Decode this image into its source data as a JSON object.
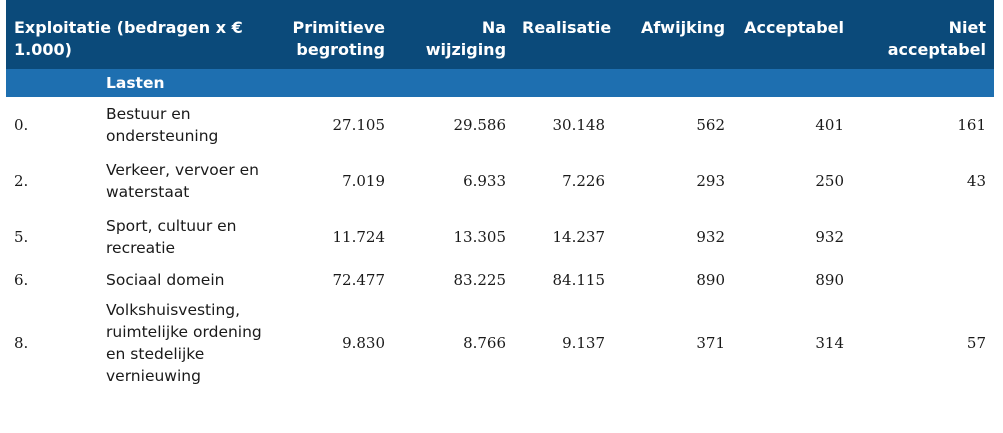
{
  "header": {
    "col_label": "Exploitatie (bedragen x € 1.000)",
    "col_primitieve": "Primitieve begroting",
    "col_na_wijziging": "Na wijziging",
    "col_realisatie": "Realisatie",
    "col_afwijking": "Afwijking",
    "col_acceptabel": "Acceptabel",
    "col_niet_acceptabel": "Niet acceptabel"
  },
  "section": {
    "label": "Lasten"
  },
  "rows": [
    {
      "code": "0.",
      "name": "Bestuur en ondersteuning",
      "primitieve": "27.105",
      "na_wijziging": "29.586",
      "realisatie": "30.148",
      "afwijking": "562",
      "acceptabel": "401",
      "niet_acceptabel": "161"
    },
    {
      "code": "2.",
      "name": "Verkeer, vervoer en waterstaat",
      "primitieve": "7.019",
      "na_wijziging": "6.933",
      "realisatie": "7.226",
      "afwijking": "293",
      "acceptabel": "250",
      "niet_acceptabel": "43"
    },
    {
      "code": "5.",
      "name": "Sport, cultuur en recreatie",
      "primitieve": "11.724",
      "na_wijziging": "13.305",
      "realisatie": "14.237",
      "afwijking": "932",
      "acceptabel": "932",
      "niet_acceptabel": ""
    },
    {
      "code": "6.",
      "name": "Sociaal domein",
      "primitieve": "72.477",
      "na_wijziging": "83.225",
      "realisatie": "84.115",
      "afwijking": "890",
      "acceptabel": "890",
      "niet_acceptabel": ""
    },
    {
      "code": "8.",
      "name": "Volkshuisvesting, ruimtelijke ordening en stedelijke vernieuwing",
      "primitieve": "9.830",
      "na_wijziging": "8.766",
      "realisatie": "9.137",
      "afwijking": "371",
      "acceptabel": "314",
      "niet_acceptabel": "57"
    }
  ],
  "colors": {
    "header_bg": "#0b4a7a",
    "subheader_bg": "#1e6fb0"
  }
}
